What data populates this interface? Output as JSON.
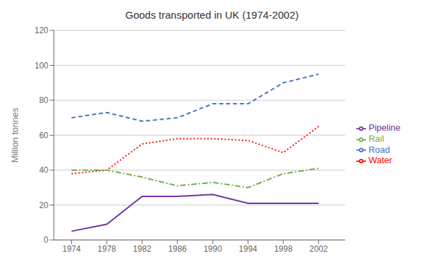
{
  "chart_data": {
    "type": "line",
    "title": "Goods transported in UK (1974-2002)",
    "y_label": "Million tonnes",
    "x": [
      1974,
      1978,
      1982,
      1986,
      1990,
      1994,
      1998,
      2002
    ],
    "xlim": [
      1972,
      2005
    ],
    "xticks": [
      1974,
      1978,
      1982,
      1986,
      1990,
      1994,
      1998,
      2002
    ],
    "ylim": [
      0,
      120
    ],
    "yticks": [
      0,
      20,
      40,
      60,
      80,
      100,
      120
    ],
    "grid": "y",
    "legend": "right",
    "series": [
      {
        "name": "Road",
        "color": "#4472C4",
        "line_style": "dashed",
        "values": [
          70,
          73,
          68,
          70,
          78,
          78,
          90,
          95
        ]
      },
      {
        "name": "Water",
        "color": "#FF0000",
        "line_style": "dotted",
        "values": [
          38,
          40,
          55,
          58,
          58,
          57,
          50,
          65
        ]
      },
      {
        "name": "Rail",
        "color": "#70AD47",
        "line_style": "dashdot",
        "values": [
          40,
          40,
          36,
          31,
          33,
          30,
          38,
          41
        ]
      },
      {
        "name": "Pipeline",
        "color": "#7030A0",
        "line_style": "solid",
        "values": [
          5,
          9,
          25,
          25,
          26,
          21,
          21,
          21
        ]
      }
    ]
  }
}
